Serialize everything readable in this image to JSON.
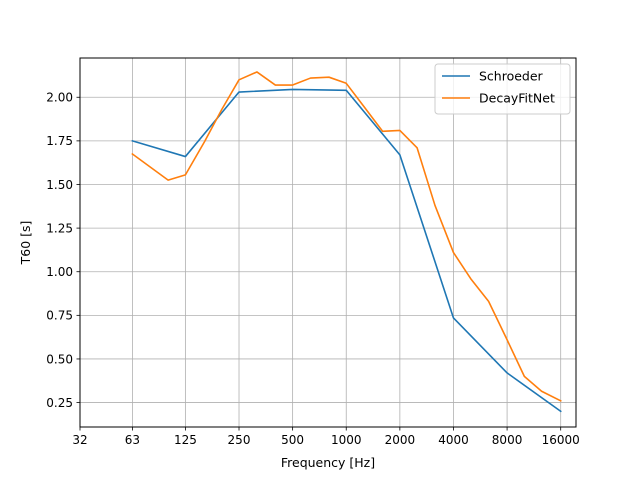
{
  "chart_data": {
    "type": "line",
    "title": "",
    "xlabel": "Frequency [Hz]",
    "ylabel": "T60 [s]",
    "x_scale": "log2",
    "xlim": [
      32,
      19500
    ],
    "ylim": [
      0.11,
      2.225
    ],
    "grid": true,
    "legend_position": "top-right",
    "x_ticks": [
      {
        "value": 32,
        "label": "32"
      },
      {
        "value": 63,
        "label": "63"
      },
      {
        "value": 125,
        "label": "125"
      },
      {
        "value": 250,
        "label": "250"
      },
      {
        "value": 500,
        "label": "500"
      },
      {
        "value": 1000,
        "label": "1000"
      },
      {
        "value": 2000,
        "label": "2000"
      },
      {
        "value": 4000,
        "label": "4000"
      },
      {
        "value": 8000,
        "label": "8000"
      },
      {
        "value": 16000,
        "label": "16000"
      }
    ],
    "y_ticks": [
      {
        "value": 0.25,
        "label": "0.25"
      },
      {
        "value": 0.5,
        "label": "0.50"
      },
      {
        "value": 0.75,
        "label": "0.75"
      },
      {
        "value": 1.0,
        "label": "1.00"
      },
      {
        "value": 1.25,
        "label": "1.25"
      },
      {
        "value": 1.5,
        "label": "1.50"
      },
      {
        "value": 1.75,
        "label": "1.75"
      },
      {
        "value": 2.0,
        "label": "2.00"
      }
    ],
    "series": [
      {
        "name": "Schroeder",
        "color": "#1f77b4",
        "x": [
          63,
          125,
          250,
          500,
          1000,
          2000,
          4000,
          8000,
          16000
        ],
        "y": [
          1.75,
          1.66,
          2.03,
          2.045,
          2.04,
          1.67,
          0.735,
          0.42,
          0.2
        ]
      },
      {
        "name": "DecayFitNet",
        "color": "#ff7f0e",
        "x": [
          63,
          100,
          125,
          160,
          200,
          250,
          315,
          400,
          500,
          630,
          800,
          1000,
          1250,
          1600,
          2000,
          2500,
          3150,
          4000,
          5000,
          6300,
          8000,
          10000,
          12500,
          16000
        ],
        "y": [
          1.675,
          1.525,
          1.555,
          1.745,
          1.93,
          2.1,
          2.145,
          2.07,
          2.07,
          2.11,
          2.115,
          2.08,
          1.95,
          1.805,
          1.81,
          1.71,
          1.38,
          1.11,
          0.96,
          0.83,
          0.61,
          0.4,
          0.315,
          0.26
        ]
      }
    ]
  }
}
